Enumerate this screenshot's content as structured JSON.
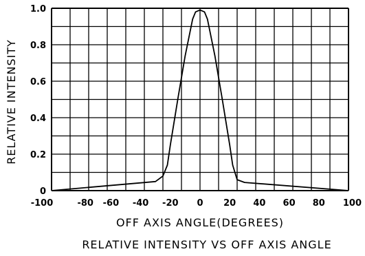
{
  "chart_data": {
    "type": "line",
    "title": "RELATIVE INTENSITY VS OFF AXIS ANGLE",
    "xlabel": "OFF AXIS ANGLE(DEGREES)",
    "ylabel": "RELATIVE INTENSITY",
    "xlim": [
      -100,
      100
    ],
    "ylim": [
      0,
      1.0
    ],
    "grid": true,
    "x_ticks": [
      "-100",
      "-80",
      "-60",
      "-40",
      "-20",
      "0",
      "20",
      "40",
      "60",
      "80",
      "100"
    ],
    "y_ticks": [
      "0",
      "0.2",
      "0.4",
      "0.6",
      "0.8",
      "1.0"
    ],
    "series": [
      {
        "x": [
          -100,
          -30,
          -25,
          -22,
          -20,
          -15,
          -10,
          -5,
          -3,
          0,
          3,
          5,
          10,
          15,
          20,
          22,
          25,
          30,
          100
        ],
        "y": [
          0,
          0.05,
          0.08,
          0.14,
          0.25,
          0.5,
          0.74,
          0.94,
          0.98,
          0.99,
          0.98,
          0.94,
          0.74,
          0.5,
          0.25,
          0.14,
          0.06,
          0.045,
          0
        ]
      }
    ],
    "colors": {
      "line": "#000000",
      "grid": "#000000",
      "background": "#ffffff"
    }
  }
}
